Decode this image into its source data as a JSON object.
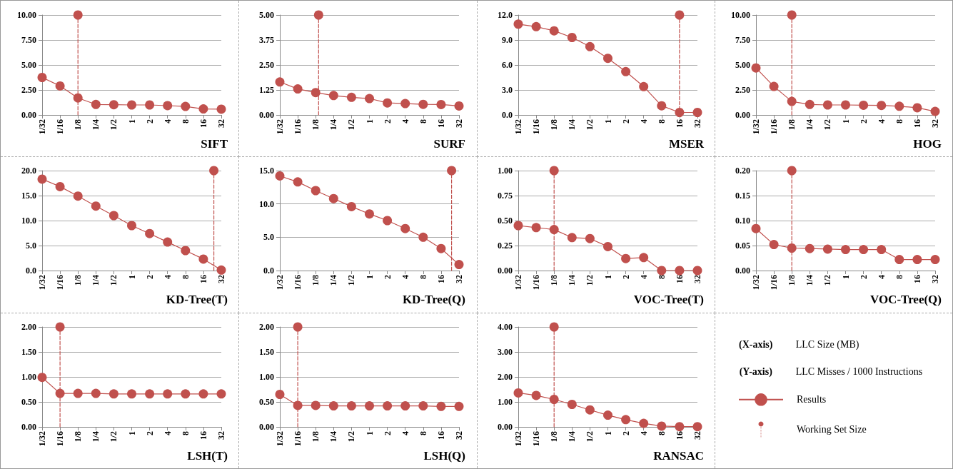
{
  "chart_data": [
    {
      "type": "line",
      "title": "SIFT",
      "x": [
        0.03125,
        0.0625,
        0.125,
        0.25,
        0.5,
        1,
        2,
        4,
        8,
        16,
        32
      ],
      "xlim": [
        0.03125,
        32
      ],
      "xticks": [
        {
          "value": 0.03125,
          "label": "1/32"
        },
        {
          "value": 0.0625,
          "label": "1/16"
        },
        {
          "value": 0.125,
          "label": "1/8"
        },
        {
          "value": 0.25,
          "label": "1/4"
        },
        {
          "value": 0.5,
          "label": "1/2"
        },
        1,
        2,
        4,
        8,
        16,
        32
      ],
      "log": "x",
      "ylim": [
        0,
        10
      ],
      "yticks": [
        {
          "value": 0,
          "label": "0.00"
        },
        {
          "value": 2.5,
          "label": "2.50"
        },
        {
          "value": 5,
          "label": "5.00"
        },
        {
          "value": 7.5,
          "label": "7.50"
        },
        {
          "value": 10,
          "label": "10.00"
        }
      ],
      "grid": "y",
      "marker": "circle",
      "line_style": "solid",
      "series": [
        {
          "color": "#c0504d",
          "values": [
            3.75,
            2.9,
            1.7,
            1.05,
            1.02,
            1.0,
            1.0,
            0.93,
            0.85,
            0.6,
            0.58
          ]
        },
        {
          "type": "lollipop",
          "x": [
            0.125
          ],
          "values": [
            10
          ],
          "color": "#c0504d",
          "line_style": "dashed"
        }
      ]
    },
    {
      "type": "line",
      "title": "SURF",
      "x": [
        0.03125,
        0.0625,
        0.125,
        0.25,
        0.5,
        1,
        2,
        4,
        8,
        16,
        32
      ],
      "xlim": [
        0.03125,
        32
      ],
      "xticks": [
        {
          "value": 0.03125,
          "label": "1/32"
        },
        {
          "value": 0.0625,
          "label": "1/16"
        },
        {
          "value": 0.125,
          "label": "1/8"
        },
        {
          "value": 0.25,
          "label": "1/4"
        },
        {
          "value": 0.5,
          "label": "1/2"
        },
        1,
        2,
        4,
        8,
        16,
        32
      ],
      "log": "x",
      "ylim": [
        0,
        5
      ],
      "yticks": [
        {
          "value": 0,
          "label": "0.00"
        },
        1.25,
        {
          "value": 2.5,
          "label": "2.50"
        },
        3.75,
        {
          "value": 5,
          "label": "5.00"
        }
      ],
      "grid": "y",
      "marker": "circle",
      "line_style": "solid",
      "series": [
        {
          "color": "#c0504d",
          "values": [
            1.65,
            1.3,
            1.12,
            0.97,
            0.88,
            0.82,
            0.6,
            0.57,
            0.53,
            0.52,
            0.45
          ]
        },
        {
          "type": "lollipop",
          "x": [
            0.14
          ],
          "values": [
            5
          ],
          "color": "#c0504d",
          "line_style": "dashed"
        }
      ]
    },
    {
      "type": "line",
      "title": "MSER",
      "x": [
        0.03125,
        0.0625,
        0.125,
        0.25,
        0.5,
        1,
        2,
        4,
        8,
        16,
        32
      ],
      "xlim": [
        0.03125,
        32
      ],
      "xticks": [
        {
          "value": 0.03125,
          "label": "1/32"
        },
        {
          "value": 0.0625,
          "label": "1/16"
        },
        {
          "value": 0.125,
          "label": "1/8"
        },
        {
          "value": 0.25,
          "label": "1/4"
        },
        {
          "value": 0.5,
          "label": "1/2"
        },
        1,
        2,
        4,
        8,
        16,
        32
      ],
      "log": "x",
      "ylim": [
        0,
        12
      ],
      "yticks": [
        {
          "value": 0,
          "label": "0.0"
        },
        {
          "value": 3,
          "label": "3.0"
        },
        {
          "value": 6,
          "label": "6.0"
        },
        {
          "value": 9,
          "label": "9.0"
        },
        {
          "value": 12,
          "label": "12.0"
        }
      ],
      "grid": "y",
      "marker": "circle",
      "line_style": "solid",
      "series": [
        {
          "color": "#c0504d",
          "values": [
            10.9,
            10.6,
            10.1,
            9.3,
            8.2,
            6.8,
            5.2,
            3.4,
            1.1,
            0.3,
            0.3
          ]
        },
        {
          "type": "lollipop",
          "x": [
            16
          ],
          "values": [
            12
          ],
          "color": "#c0504d",
          "line_style": "dashed"
        }
      ]
    },
    {
      "type": "line",
      "title": "HOG",
      "x": [
        0.03125,
        0.0625,
        0.125,
        0.25,
        0.5,
        1,
        2,
        4,
        8,
        16,
        32
      ],
      "xlim": [
        0.03125,
        32
      ],
      "xticks": [
        {
          "value": 0.03125,
          "label": "1/32"
        },
        {
          "value": 0.0625,
          "label": "1/16"
        },
        {
          "value": 0.125,
          "label": "1/8"
        },
        {
          "value": 0.25,
          "label": "1/4"
        },
        {
          "value": 0.5,
          "label": "1/2"
        },
        1,
        2,
        4,
        8,
        16,
        32
      ],
      "log": "x",
      "ylim": [
        0,
        10
      ],
      "yticks": [
        {
          "value": 0,
          "label": "0.00"
        },
        {
          "value": 2.5,
          "label": "2.50"
        },
        {
          "value": 5,
          "label": "5.00"
        },
        {
          "value": 7.5,
          "label": "7.50"
        },
        {
          "value": 10,
          "label": "10.00"
        }
      ],
      "grid": "y",
      "marker": "circle",
      "line_style": "solid",
      "series": [
        {
          "color": "#c0504d",
          "values": [
            4.7,
            2.85,
            1.35,
            1.05,
            1.0,
            1.0,
            0.97,
            0.95,
            0.87,
            0.72,
            0.35
          ]
        },
        {
          "type": "lollipop",
          "x": [
            0.125
          ],
          "values": [
            10
          ],
          "color": "#c0504d",
          "line_style": "dashed"
        }
      ]
    },
    {
      "type": "line",
      "title": "KD-Tree(T)",
      "x": [
        0.03125,
        0.0625,
        0.125,
        0.25,
        0.5,
        1,
        2,
        4,
        8,
        16,
        32
      ],
      "xlim": [
        0.03125,
        32
      ],
      "xticks": [
        {
          "value": 0.03125,
          "label": "1/32"
        },
        {
          "value": 0.0625,
          "label": "1/16"
        },
        {
          "value": 0.125,
          "label": "1/8"
        },
        {
          "value": 0.25,
          "label": "1/4"
        },
        {
          "value": 0.5,
          "label": "1/2"
        },
        1,
        2,
        4,
        8,
        16,
        32
      ],
      "log": "x",
      "ylim": [
        0,
        20
      ],
      "yticks": [
        {
          "value": 0,
          "label": "0.0"
        },
        {
          "value": 5,
          "label": "5.0"
        },
        {
          "value": 10,
          "label": "10.0"
        },
        {
          "value": 15,
          "label": "15.0"
        },
        {
          "value": 20,
          "label": "20.0"
        }
      ],
      "grid": "y",
      "marker": "circle",
      "line_style": "solid",
      "series": [
        {
          "color": "#c0504d",
          "values": [
            18.3,
            16.8,
            14.9,
            12.9,
            11.0,
            9.0,
            7.4,
            5.7,
            4.0,
            2.3,
            0.1
          ]
        },
        {
          "type": "lollipop",
          "x": [
            24
          ],
          "values": [
            20
          ],
          "color": "#c0504d",
          "line_style": "dashed"
        }
      ]
    },
    {
      "type": "line",
      "title": "KD-Tree(Q)",
      "x": [
        0.03125,
        0.0625,
        0.125,
        0.25,
        0.5,
        1,
        2,
        4,
        8,
        16,
        32
      ],
      "xlim": [
        0.03125,
        32
      ],
      "xticks": [
        {
          "value": 0.03125,
          "label": "1/32"
        },
        {
          "value": 0.0625,
          "label": "1/16"
        },
        {
          "value": 0.125,
          "label": "1/8"
        },
        {
          "value": 0.25,
          "label": "1/4"
        },
        {
          "value": 0.5,
          "label": "1/2"
        },
        1,
        2,
        4,
        8,
        16,
        32
      ],
      "log": "x",
      "ylim": [
        0,
        15
      ],
      "yticks": [
        {
          "value": 0,
          "label": "0.0"
        },
        {
          "value": 5,
          "label": "5.0"
        },
        {
          "value": 10,
          "label": "10.0"
        },
        {
          "value": 15,
          "label": "15.0"
        }
      ],
      "grid": "y",
      "marker": "circle",
      "line_style": "solid",
      "series": [
        {
          "color": "#c0504d",
          "values": [
            14.2,
            13.3,
            12.0,
            10.8,
            9.6,
            8.5,
            7.5,
            6.3,
            5.0,
            3.3,
            0.9
          ]
        },
        {
          "type": "lollipop",
          "x": [
            24
          ],
          "values": [
            15
          ],
          "color": "#c0504d",
          "line_style": "dashed"
        }
      ]
    },
    {
      "type": "line",
      "title": "VOC-Tree(T)",
      "x": [
        0.03125,
        0.0625,
        0.125,
        0.25,
        0.5,
        1,
        2,
        4,
        8,
        16,
        32
      ],
      "xlim": [
        0.03125,
        32
      ],
      "xticks": [
        {
          "value": 0.03125,
          "label": "1/32"
        },
        {
          "value": 0.0625,
          "label": "1/16"
        },
        {
          "value": 0.125,
          "label": "1/8"
        },
        {
          "value": 0.25,
          "label": "1/4"
        },
        {
          "value": 0.5,
          "label": "1/2"
        },
        1,
        2,
        4,
        8,
        16,
        32
      ],
      "log": "x",
      "ylim": [
        0,
        1
      ],
      "yticks": [
        {
          "value": 0,
          "label": "0.00"
        },
        0.25,
        {
          "value": 0.5,
          "label": "0.50"
        },
        0.75,
        {
          "value": 1,
          "label": "1.00"
        }
      ],
      "grid": "y",
      "marker": "circle",
      "line_style": "solid",
      "series": [
        {
          "color": "#c0504d",
          "values": [
            0.45,
            0.43,
            0.41,
            0.33,
            0.32,
            0.24,
            0.12,
            0.13,
            0.0,
            0.0,
            0.0
          ]
        },
        {
          "type": "lollipop",
          "x": [
            0.125
          ],
          "values": [
            1
          ],
          "color": "#c0504d",
          "line_style": "dashed"
        }
      ]
    },
    {
      "type": "line",
      "title": "VOC-Tree(Q)",
      "x": [
        0.03125,
        0.0625,
        0.125,
        0.25,
        0.5,
        1,
        2,
        4,
        8,
        16,
        32
      ],
      "xlim": [
        0.03125,
        32
      ],
      "xticks": [
        {
          "value": 0.03125,
          "label": "1/32"
        },
        {
          "value": 0.0625,
          "label": "1/16"
        },
        {
          "value": 0.125,
          "label": "1/8"
        },
        {
          "value": 0.25,
          "label": "1/4"
        },
        {
          "value": 0.5,
          "label": "1/2"
        },
        1,
        2,
        4,
        8,
        16,
        32
      ],
      "log": "x",
      "ylim": [
        0,
        0.2
      ],
      "yticks": [
        {
          "value": 0,
          "label": "0.00"
        },
        0.05,
        {
          "value": 0.1,
          "label": "0.10"
        },
        0.15,
        {
          "value": 0.2,
          "label": "0.20"
        }
      ],
      "grid": "y",
      "marker": "circle",
      "line_style": "solid",
      "series": [
        {
          "color": "#c0504d",
          "values": [
            0.084,
            0.052,
            0.045,
            0.044,
            0.043,
            0.042,
            0.042,
            0.042,
            0.022,
            0.022,
            0.022
          ]
        },
        {
          "type": "lollipop",
          "x": [
            0.125
          ],
          "values": [
            0.2
          ],
          "color": "#c0504d",
          "line_style": "dashed"
        }
      ]
    },
    {
      "type": "line",
      "title": "LSH(T)",
      "x": [
        0.03125,
        0.0625,
        0.125,
        0.25,
        0.5,
        1,
        2,
        4,
        8,
        16,
        32
      ],
      "xlim": [
        0.03125,
        32
      ],
      "xticks": [
        {
          "value": 0.03125,
          "label": "1/32"
        },
        {
          "value": 0.0625,
          "label": "1/16"
        },
        {
          "value": 0.125,
          "label": "1/8"
        },
        {
          "value": 0.25,
          "label": "1/4"
        },
        {
          "value": 0.5,
          "label": "1/2"
        },
        1,
        2,
        4,
        8,
        16,
        32
      ],
      "log": "x",
      "ylim": [
        0,
        2
      ],
      "yticks": [
        {
          "value": 0,
          "label": "0.00"
        },
        {
          "value": 0.5,
          "label": "0.50"
        },
        {
          "value": 1,
          "label": "1.00"
        },
        {
          "value": 1.5,
          "label": "1.50"
        },
        {
          "value": 2,
          "label": "2.00"
        }
      ],
      "grid": "y",
      "marker": "circle",
      "line_style": "solid",
      "series": [
        {
          "color": "#c0504d",
          "values": [
            0.99,
            0.67,
            0.67,
            0.67,
            0.66,
            0.66,
            0.66,
            0.66,
            0.66,
            0.66,
            0.66
          ]
        },
        {
          "type": "lollipop",
          "x": [
            0.0625
          ],
          "values": [
            2
          ],
          "color": "#c0504d",
          "line_style": "dashed"
        }
      ]
    },
    {
      "type": "line",
      "title": "LSH(Q)",
      "x": [
        0.03125,
        0.0625,
        0.125,
        0.25,
        0.5,
        1,
        2,
        4,
        8,
        16,
        32
      ],
      "xlim": [
        0.03125,
        32
      ],
      "xticks": [
        {
          "value": 0.03125,
          "label": "1/32"
        },
        {
          "value": 0.0625,
          "label": "1/16"
        },
        {
          "value": 0.125,
          "label": "1/8"
        },
        {
          "value": 0.25,
          "label": "1/4"
        },
        {
          "value": 0.5,
          "label": "1/2"
        },
        1,
        2,
        4,
        8,
        16,
        32
      ],
      "log": "x",
      "ylim": [
        0,
        2
      ],
      "yticks": [
        {
          "value": 0,
          "label": "0.00"
        },
        {
          "value": 0.5,
          "label": "0.50"
        },
        {
          "value": 1,
          "label": "1.00"
        },
        {
          "value": 1.5,
          "label": "1.50"
        },
        {
          "value": 2,
          "label": "2.00"
        }
      ],
      "grid": "y",
      "marker": "circle",
      "line_style": "solid",
      "series": [
        {
          "color": "#c0504d",
          "values": [
            0.65,
            0.43,
            0.43,
            0.42,
            0.42,
            0.42,
            0.42,
            0.42,
            0.42,
            0.41,
            0.41
          ]
        },
        {
          "type": "lollipop",
          "x": [
            0.0625
          ],
          "values": [
            2
          ],
          "color": "#c0504d",
          "line_style": "dashed"
        }
      ]
    },
    {
      "type": "line",
      "title": "RANSAC",
      "x": [
        0.03125,
        0.0625,
        0.125,
        0.25,
        0.5,
        1,
        2,
        4,
        8,
        16,
        32
      ],
      "xlim": [
        0.03125,
        32
      ],
      "xticks": [
        {
          "value": 0.03125,
          "label": "1/32"
        },
        {
          "value": 0.0625,
          "label": "1/16"
        },
        {
          "value": 0.125,
          "label": "1/8"
        },
        {
          "value": 0.25,
          "label": "1/4"
        },
        {
          "value": 0.5,
          "label": "1/2"
        },
        1,
        2,
        4,
        8,
        16,
        32
      ],
      "log": "x",
      "ylim": [
        0,
        4
      ],
      "yticks": [
        {
          "value": 0,
          "label": "0.00"
        },
        {
          "value": 1,
          "label": "1.00"
        },
        {
          "value": 2,
          "label": "2.00"
        },
        {
          "value": 3,
          "label": "3.00"
        },
        {
          "value": 4,
          "label": "4.00"
        }
      ],
      "grid": "y",
      "marker": "circle",
      "line_style": "solid",
      "series": [
        {
          "color": "#c0504d",
          "values": [
            1.36,
            1.26,
            1.1,
            0.9,
            0.68,
            0.47,
            0.29,
            0.14,
            0.03,
            0.01,
            0.01
          ]
        },
        {
          "type": "lollipop",
          "x": [
            0.125
          ],
          "values": [
            4
          ],
          "color": "#c0504d",
          "line_style": "dashed"
        }
      ]
    },
    {
      "type": "other",
      "xlabel": "LLC Size  (MB)",
      "ylabel": "LLC Misses / 1000 Instructions",
      "annotations": [
        "(X-axis)",
        "(Y-axis)"
      ],
      "series": [
        {
          "name": "Results",
          "type": "line",
          "line_style": "solid"
        },
        {
          "name": "Working Set Size",
          "type": "lollipop",
          "line_style": "dashed"
        }
      ]
    }
  ]
}
